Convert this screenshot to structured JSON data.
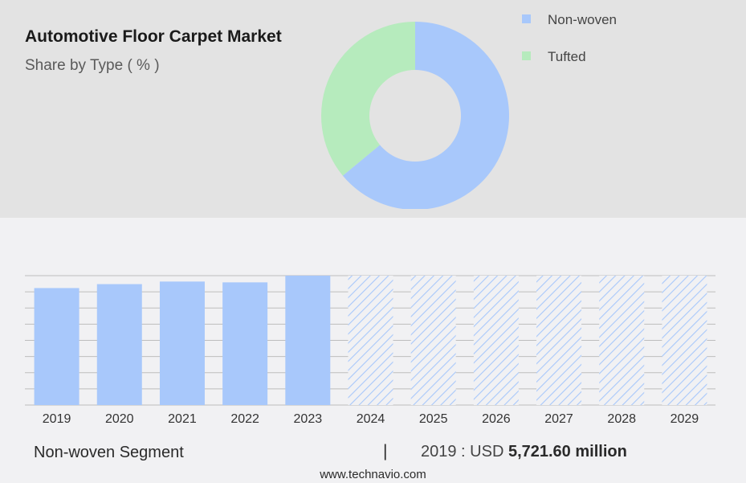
{
  "header": {
    "title": "Automotive Floor Carpet Market",
    "subtitle": "Share by Type ( % )"
  },
  "chart_data": [
    {
      "type": "pie",
      "style": "donut",
      "legend_position": "top-right",
      "slices": [
        {
          "name": "Non-woven",
          "value": 64,
          "color": "#a8c8fb"
        },
        {
          "name": "Tufted",
          "value": 36,
          "color": "#b6ebbd"
        }
      ]
    },
    {
      "type": "bar",
      "categories": [
        "2019",
        "2020",
        "2021",
        "2022",
        "2023",
        "2024",
        "2025",
        "2026",
        "2027",
        "2028",
        "2029"
      ],
      "values": [
        5721.6,
        5914,
        6040,
        6000,
        6328,
        null,
        null,
        null,
        null,
        null,
        null
      ],
      "forecast_categories": [
        "2024",
        "2025",
        "2026",
        "2027",
        "2028",
        "2029"
      ],
      "bar_color": "#a8c8fb",
      "grid": true
    }
  ],
  "footer": {
    "segment_label": "Non-woven Segment",
    "separator": "|",
    "value_prefix": "2019 : USD ",
    "value_bold": "5,721.60 million"
  },
  "source": "www.technavio.com"
}
